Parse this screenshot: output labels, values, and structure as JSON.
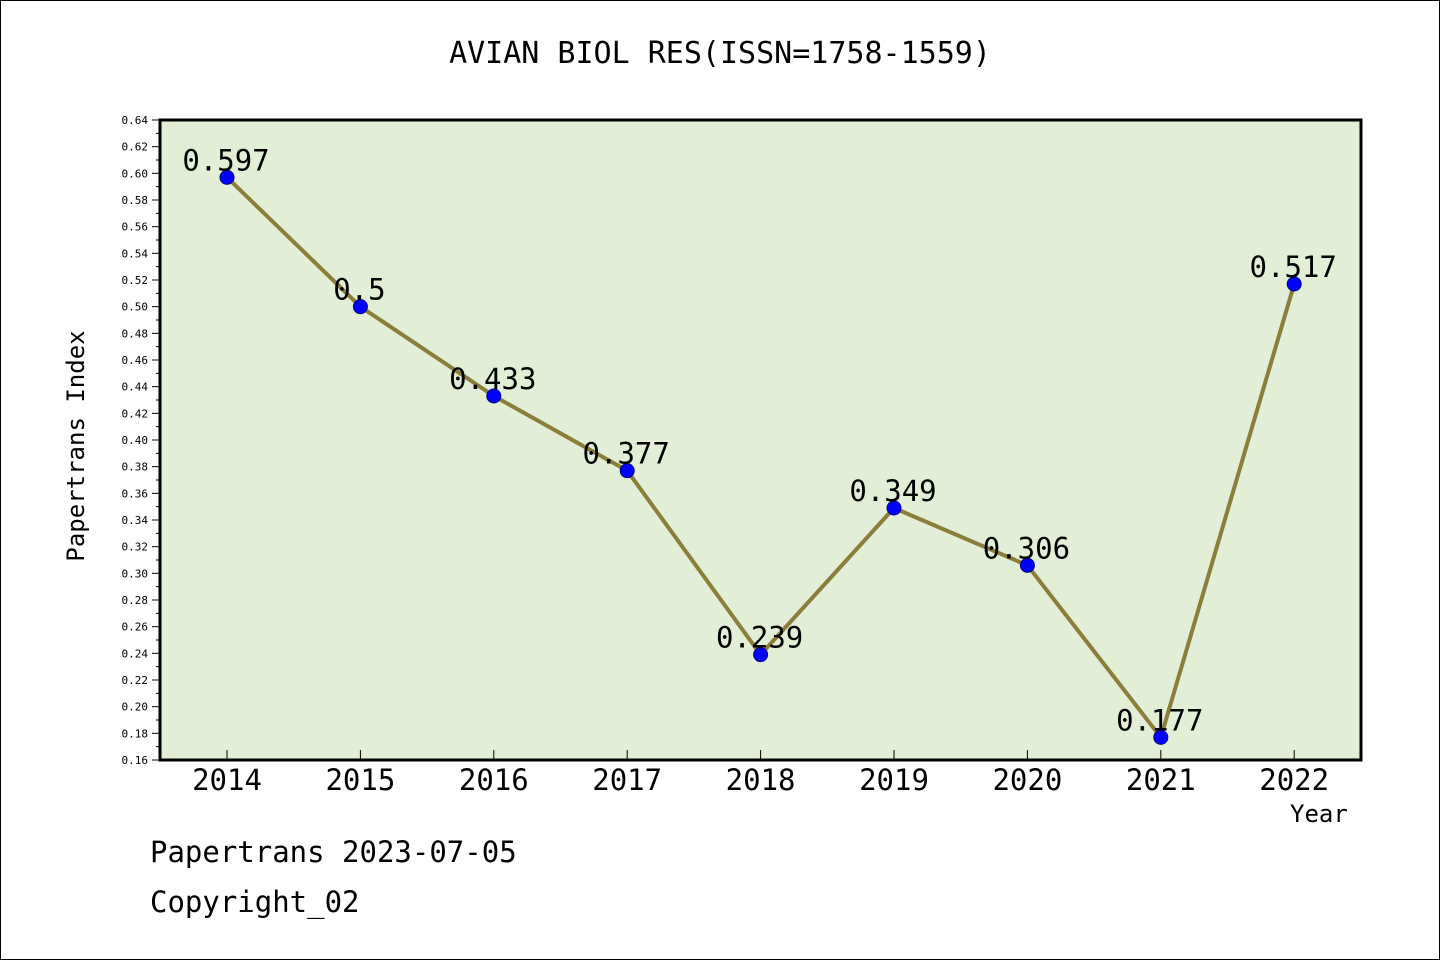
{
  "chart_data": {
    "type": "line",
    "title": "AVIAN BIOL RES(ISSN=1758-1559)",
    "xlabel": "Year",
    "ylabel": "Papertrans Index",
    "categories": [
      "2014",
      "2015",
      "2016",
      "2017",
      "2018",
      "2019",
      "2020",
      "2021",
      "2022"
    ],
    "values": [
      0.597,
      0.5,
      0.433,
      0.377,
      0.239,
      0.349,
      0.306,
      0.177,
      0.517
    ],
    "data_labels": [
      "0.597",
      "0.5",
      "0.433",
      "0.377",
      "0.239",
      "0.349",
      "0.306",
      "0.177",
      "0.517"
    ],
    "ylim": [
      0.16,
      0.64
    ],
    "yticks": [
      "0.16",
      "0.18",
      "0.20",
      "0.22",
      "0.24",
      "0.26",
      "0.28",
      "0.30",
      "0.32",
      "0.34",
      "0.36",
      "0.38",
      "0.40",
      "0.42",
      "0.44",
      "0.46",
      "0.48",
      "0.50",
      "0.52",
      "0.54",
      "0.56",
      "0.58",
      "0.60",
      "0.62",
      "0.64"
    ],
    "grid": false,
    "colors": {
      "plot_background": "#e2efd6",
      "line": "#8b7d3a",
      "marker": "#0000ff"
    }
  },
  "footer": {
    "line1": "Papertrans 2023-07-05",
    "line2": "Copyright_02"
  }
}
